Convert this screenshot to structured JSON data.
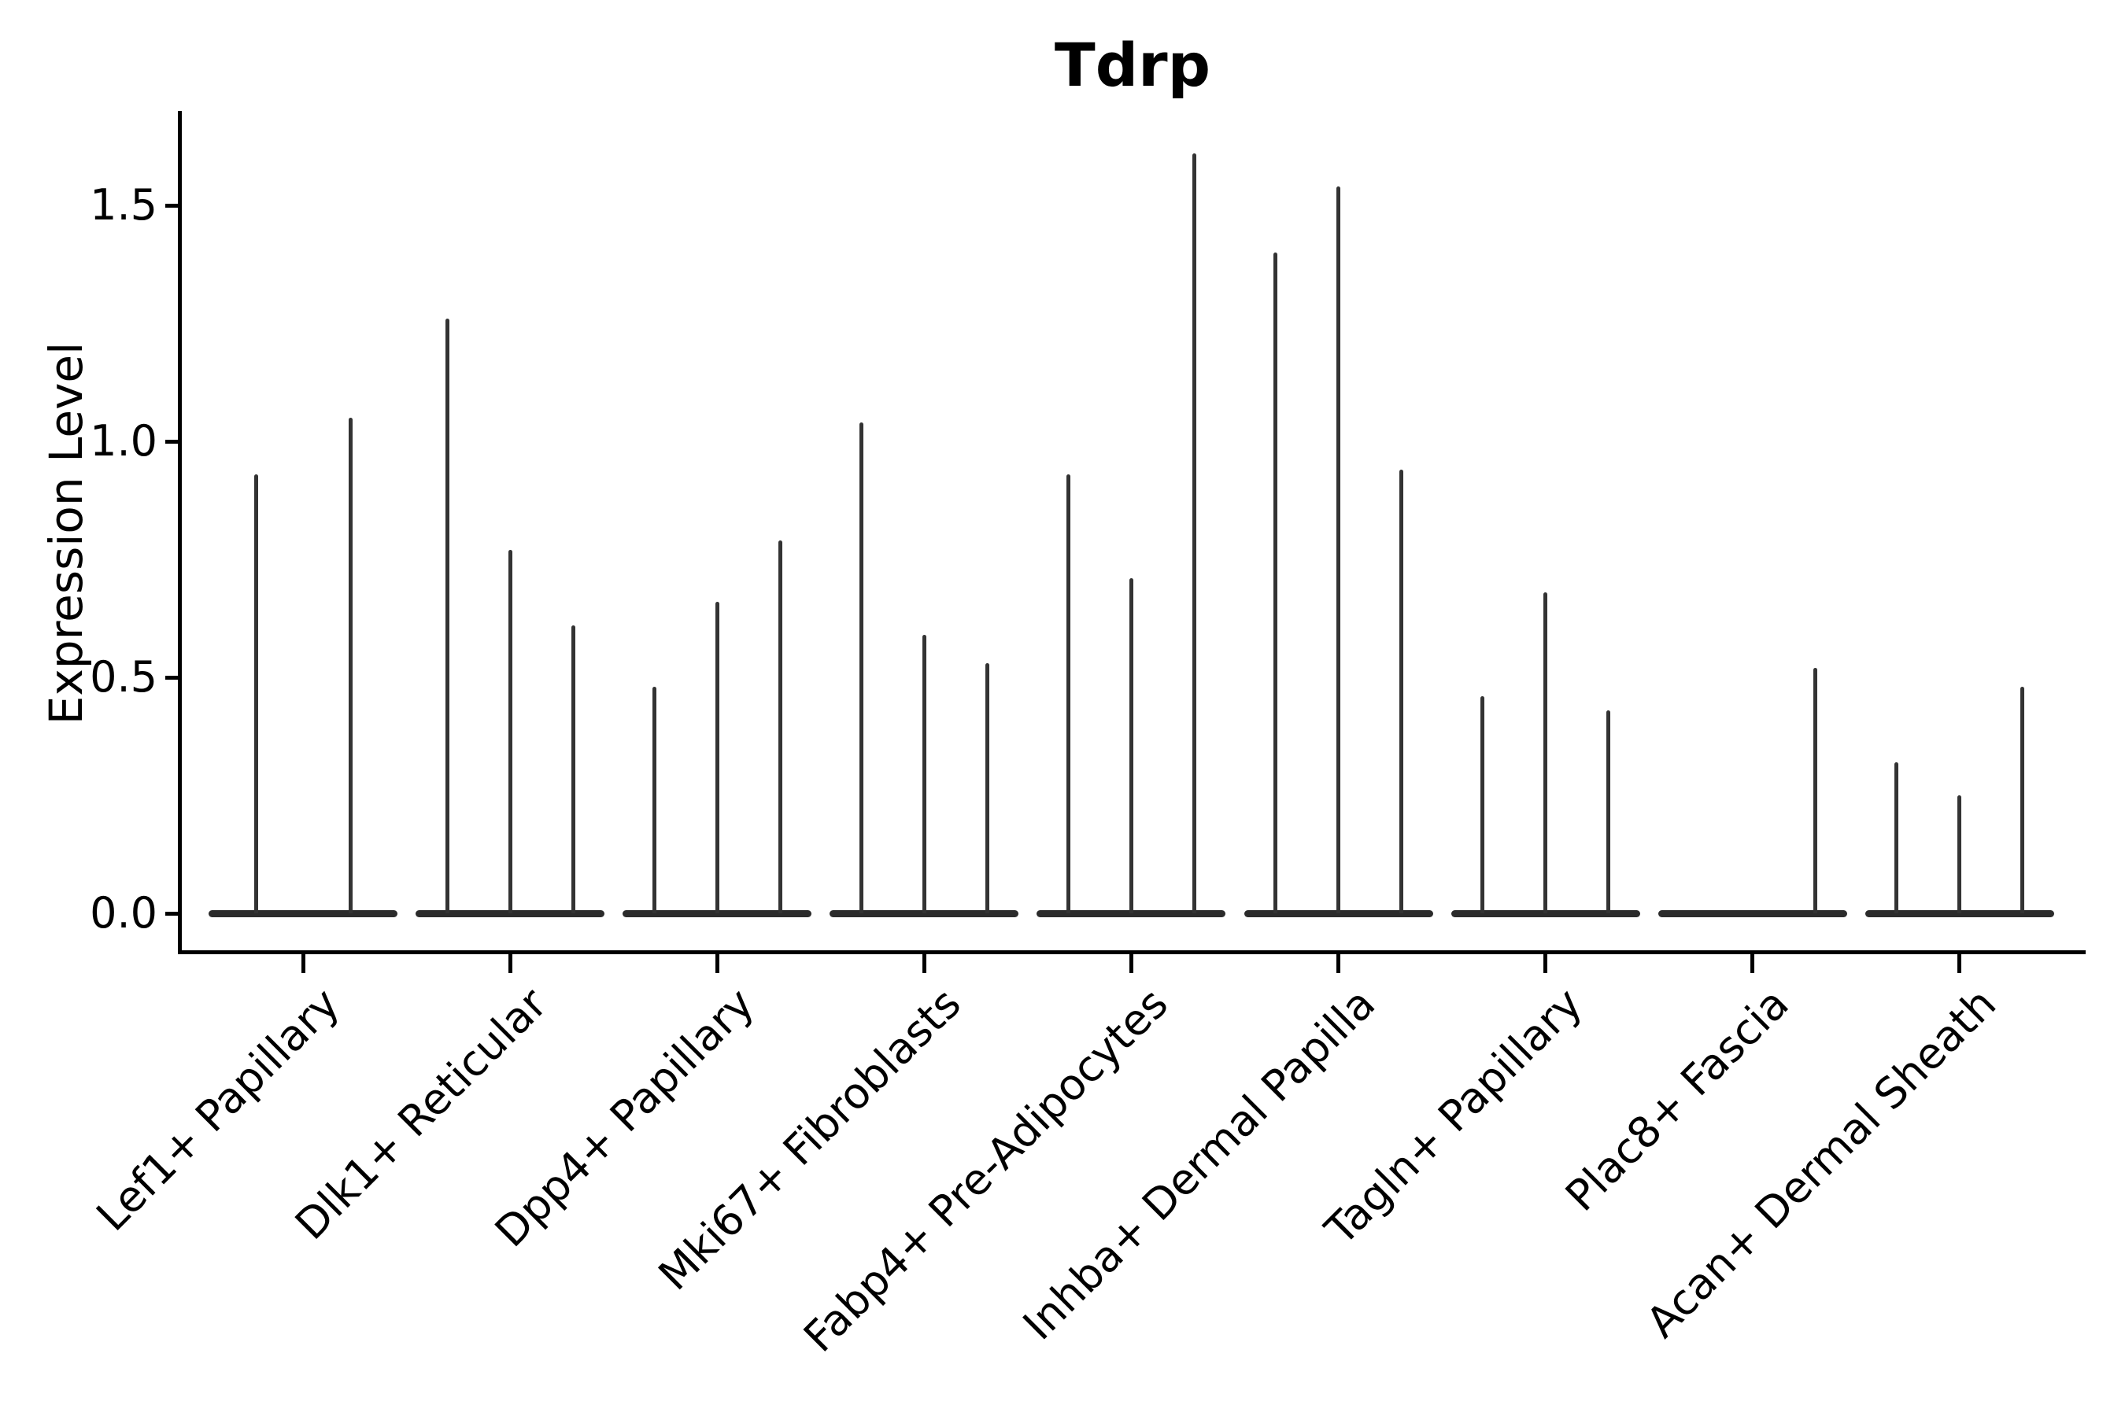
{
  "chart_data": {
    "type": "violin",
    "title": "Tdrp",
    "ylabel": "Expression Level",
    "xlabel": "",
    "grid": false,
    "legend_position": "none",
    "ylim": [
      -0.08,
      1.7
    ],
    "ytick_values": [
      0.0,
      0.5,
      1.0,
      1.5
    ],
    "ytick_labels": [
      "0.0",
      "0.5",
      "1.0",
      "1.5"
    ],
    "categories": [
      "Lef1+ Papillary",
      "Dlk1+ Reticular",
      "Dpp4+ Papillary",
      "Mki67+ Fibroblasts",
      "Fabp4+ Pre-Adipocytes",
      "Inhba+ Dermal Papilla",
      "Tagln+ Papillary",
      "Plac8+ Fascia",
      "Acan+ Dermal Sheath"
    ],
    "groups": [
      {
        "category": "Lef1+ Papillary",
        "violins": [
          {
            "offset": -60,
            "max": 0.93
          },
          {
            "offset": 60,
            "max": 1.05
          }
        ]
      },
      {
        "category": "Dlk1+ Reticular",
        "violins": [
          {
            "offset": -80,
            "max": 1.26
          },
          {
            "offset": 0,
            "max": 0.77
          },
          {
            "offset": 80,
            "max": 0.61
          }
        ]
      },
      {
        "category": "Dpp4+ Papillary",
        "violins": [
          {
            "offset": -80,
            "max": 0.48
          },
          {
            "offset": 0,
            "max": 0.66
          },
          {
            "offset": 80,
            "max": 0.79
          }
        ]
      },
      {
        "category": "Mki67+ Fibroblasts",
        "violins": [
          {
            "offset": -80,
            "max": 1.04
          },
          {
            "offset": 0,
            "max": 0.59
          },
          {
            "offset": 80,
            "max": 0.53
          }
        ]
      },
      {
        "category": "Fabp4+ Pre-Adipocytes",
        "violins": [
          {
            "offset": -80,
            "max": 0.93
          },
          {
            "offset": 0,
            "max": 0.71
          },
          {
            "offset": 80,
            "max": 1.61
          }
        ]
      },
      {
        "category": "Inhba+ Dermal Papilla",
        "violins": [
          {
            "offset": -80,
            "max": 1.4
          },
          {
            "offset": 0,
            "max": 1.54
          },
          {
            "offset": 80,
            "max": 0.94
          }
        ]
      },
      {
        "category": "Tagln+ Papillary",
        "violins": [
          {
            "offset": -80,
            "max": 0.46
          },
          {
            "offset": 0,
            "max": 0.68
          },
          {
            "offset": 80,
            "max": 0.43
          }
        ]
      },
      {
        "category": "Plac8+ Fascia",
        "violins": [
          {
            "offset": -80,
            "max": 0.0
          },
          {
            "offset": 0,
            "max": 0.0
          },
          {
            "offset": 80,
            "max": 0.52
          }
        ]
      },
      {
        "category": "Acan+ Dermal Sheath",
        "violins": [
          {
            "offset": -80,
            "max": 0.32
          },
          {
            "offset": 0,
            "max": 0.25
          },
          {
            "offset": 80,
            "max": 0.48
          }
        ]
      }
    ],
    "colors": {
      "background": "#ffffff",
      "axis": "#000000",
      "text": "#000000",
      "violin": "#333333"
    }
  }
}
